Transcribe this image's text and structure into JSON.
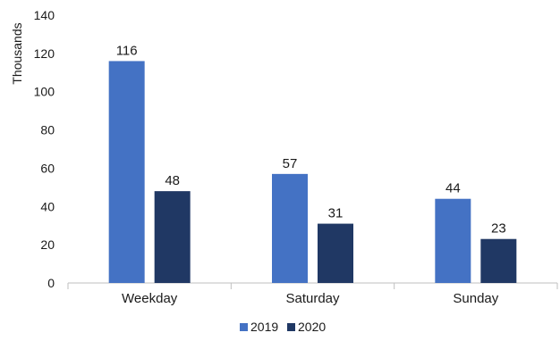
{
  "chart_data": {
    "type": "bar",
    "categories": [
      "Weekday",
      "Saturday",
      "Sunday"
    ],
    "series": [
      {
        "name": "2019",
        "values": [
          116,
          57,
          44
        ],
        "color": "#4472c4"
      },
      {
        "name": "2020",
        "values": [
          48,
          31,
          23
        ],
        "color": "#203864"
      }
    ],
    "ylabel": "Thousands",
    "xlabel": "",
    "ylim": [
      0,
      140
    ],
    "yticks": [
      0,
      20,
      40,
      60,
      80,
      100,
      120,
      140
    ],
    "grid": false,
    "legend": "bottom-center"
  }
}
